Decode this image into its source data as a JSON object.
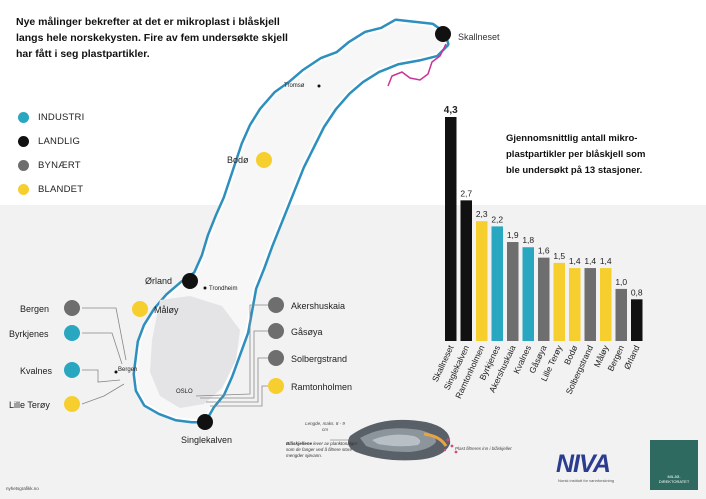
{
  "headline": "Nye målinger bekrefter at det er mikroplast i blåskjell langs hele norskekysten. Fire av fem undersøkte skjell har fått i seg plastpartikler.",
  "legend": [
    {
      "label": "INDUSTRI",
      "color": "#2aa7c0"
    },
    {
      "label": "LANDLIG",
      "color": "#111111"
    },
    {
      "label": "BYNÆRT",
      "color": "#6e6e6e"
    },
    {
      "label": "BLANDET",
      "color": "#f6cf2f"
    }
  ],
  "places": {
    "skallneset": "Skallneset",
    "tromso": "Tromsø",
    "bodo": "Bodø",
    "orland": "Ørland",
    "trondheim": "Trondheim",
    "maloy": "Måløy",
    "bergen": "Bergen",
    "byrkjenes": "Byrkjenes",
    "kvalnes": "Kvalnes",
    "lille_teroy": "Lille Terøy",
    "bergen_city": "Bergen",
    "oslo": "OSLO",
    "akershuskaia": "Akershuskaia",
    "gasoya": "Gåsøya",
    "solbergstrand": "Solbergstrand",
    "ramtonholmen": "Ramtonholmen",
    "singlekalven": "Singlekalven"
  },
  "chart_data": {
    "type": "bar",
    "title": "Gjennomsnittlig antall mikroplastpartikler per blåskjell som ble undersøkt på 13 stasjoner.",
    "title_lines": [
      "Gjennomsnittlig antall mikro-",
      "plastpartikler per blåskjell som",
      "ble undersøkt på 13 stasjoner."
    ],
    "categories": [
      "Skallneset",
      "Singlekalven",
      "Ramtonholmen",
      "Byrkjenes",
      "Akershuskaia",
      "Kvalnes",
      "Gåsøya",
      "Lille Terøy",
      "Bodø",
      "Solbergstrand",
      "Måløy",
      "Bergen",
      "Ørland"
    ],
    "values": [
      4.3,
      2.7,
      2.3,
      2.2,
      1.9,
      1.8,
      1.6,
      1.5,
      1.4,
      1.4,
      1.4,
      1.0,
      0.8
    ],
    "value_labels": [
      "4,3",
      "2,7",
      "2,3",
      "2,2",
      "1,9",
      "1,8",
      "1,6",
      "1,5",
      "1,4",
      "1,4",
      "1,4",
      "1,0",
      "0,8"
    ],
    "colors": [
      "#111111",
      "#111111",
      "#f6cf2f",
      "#2aa7c0",
      "#6e6e6e",
      "#2aa7c0",
      "#6e6e6e",
      "#f6cf2f",
      "#f6cf2f",
      "#6e6e6e",
      "#f6cf2f",
      "#6e6e6e",
      "#111111"
    ],
    "ylim": [
      0,
      4.3
    ],
    "xlabel": "",
    "ylabel": ""
  },
  "mussel": {
    "length_note": "Lengde, maks. 8 - 9 cm",
    "lead": "Blåskjellene",
    "note": "lever av planktonalger som de fanger ved å filtrere store mengder sjøvann.",
    "filter_note": "Plast filtreres inn i blåskjellet"
  },
  "logos": {
    "niva": "NIVA",
    "niva_sub": "Norsk institutt for vannforskning",
    "miljo": "MILJØ-DIREKTORATET"
  },
  "credit": "nyhetsgrafikk.no"
}
